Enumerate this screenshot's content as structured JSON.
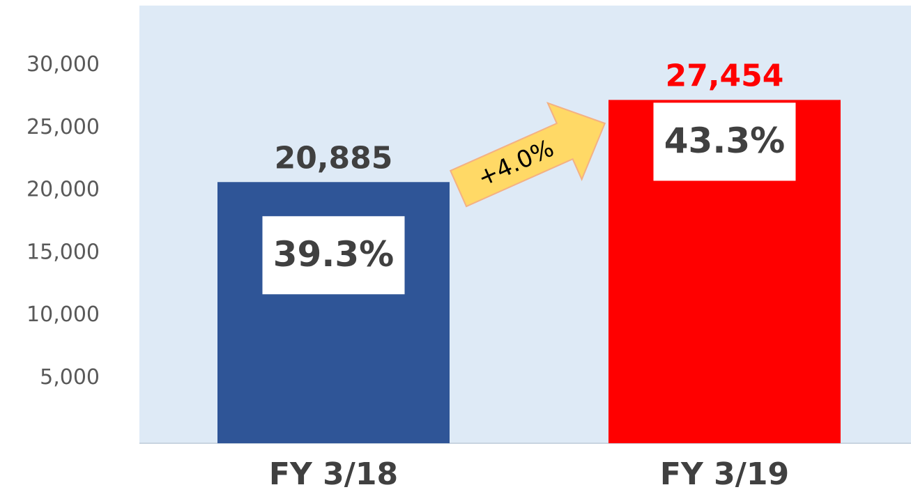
{
  "chart_data": {
    "type": "bar",
    "categories": [
      "FY 3/18",
      "FY 3/19"
    ],
    "values": [
      20885,
      27454
    ],
    "value_labels": [
      "20,885",
      "27,454"
    ],
    "colors": [
      "#2f5597",
      "#ff0000"
    ],
    "value_label_colors": [
      "#404040",
      "#ff0000"
    ],
    "share_labels": [
      "39.3%",
      "43.3%"
    ],
    "growth_label": "+4.0%",
    "ylim": [
      0,
      35000
    ],
    "yticks": [
      {
        "value": 5000,
        "label": "5,000"
      },
      {
        "value": 10000,
        "label": "10,000"
      },
      {
        "value": 15000,
        "label": "15,000"
      },
      {
        "value": 20000,
        "label": "20,000"
      },
      {
        "value": 25000,
        "label": "25,000"
      },
      {
        "value": 30000,
        "label": "30,000"
      }
    ]
  }
}
